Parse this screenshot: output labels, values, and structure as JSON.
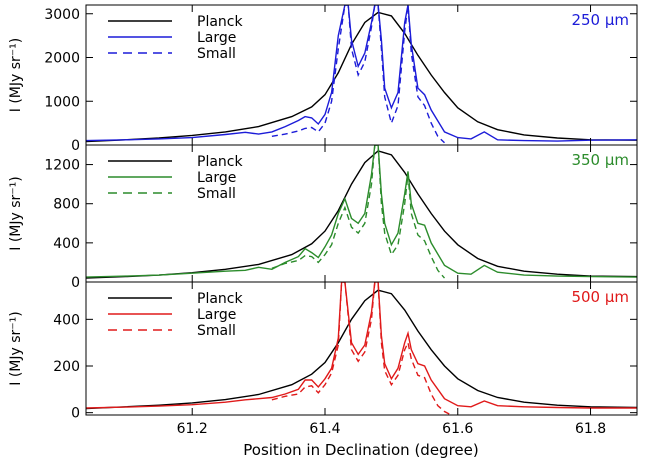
{
  "xlabel": "Position in Declination (degree)",
  "xlim": [
    61.04,
    61.87
  ],
  "x_ticks": [
    61.2,
    61.4,
    61.6,
    61.8
  ],
  "x_tick_labels": [
    "61.2",
    "61.4",
    "61.6",
    "61.8"
  ],
  "chart_data": [
    {
      "type": "line",
      "band_label": "250 μm",
      "band_color": "#1c1cd8",
      "ylabel": "I (MJy sr⁻¹)",
      "ylim": [
        0,
        3200
      ],
      "y_ticks": [
        0,
        1000,
        2000,
        3000
      ],
      "y_tick_labels": [
        "0",
        "1000",
        "2000",
        "3000"
      ],
      "legend": [
        "Planck",
        "Large",
        "Small"
      ],
      "series": [
        {
          "name": "Planck",
          "color": "#000000",
          "dash": "solid",
          "x": [
            61.04,
            61.1,
            61.15,
            61.2,
            61.25,
            61.3,
            61.35,
            61.38,
            61.4,
            61.42,
            61.44,
            61.46,
            61.48,
            61.5,
            61.52,
            61.54,
            61.56,
            61.58,
            61.6,
            61.63,
            61.66,
            61.7,
            61.75,
            61.8,
            61.87
          ],
          "y": [
            80,
            120,
            160,
            220,
            300,
            420,
            650,
            870,
            1150,
            1650,
            2300,
            2800,
            3030,
            2950,
            2550,
            2050,
            1600,
            1200,
            850,
            530,
            350,
            230,
            160,
            120,
            110
          ]
        },
        {
          "name": "Large",
          "color": "#1c1cd8",
          "dash": "solid",
          "x": [
            61.04,
            61.1,
            61.15,
            61.2,
            61.25,
            61.28,
            61.3,
            61.32,
            61.34,
            61.36,
            61.37,
            61.38,
            61.39,
            61.4,
            61.41,
            61.42,
            61.43,
            61.435,
            61.44,
            61.45,
            61.46,
            61.47,
            61.475,
            61.48,
            61.485,
            61.49,
            61.5,
            61.51,
            61.52,
            61.525,
            61.53,
            61.54,
            61.55,
            61.56,
            61.58,
            61.6,
            61.62,
            61.64,
            61.66,
            61.7,
            61.75,
            61.8,
            61.87
          ],
          "y": [
            100,
            120,
            140,
            170,
            240,
            290,
            250,
            300,
            420,
            560,
            650,
            620,
            480,
            700,
            1200,
            2500,
            3200,
            3200,
            2400,
            1800,
            2100,
            2800,
            3200,
            3200,
            2400,
            1300,
            850,
            1200,
            2800,
            3200,
            2300,
            1300,
            1150,
            800,
            300,
            170,
            140,
            300,
            120,
            100,
            90,
            110,
            120
          ]
        },
        {
          "name": "Small",
          "color": "#1c1cd8",
          "dash": "dashed",
          "x": [
            61.32,
            61.34,
            61.36,
            61.37,
            61.38,
            61.39,
            61.4,
            61.41,
            61.42,
            61.43,
            61.435,
            61.44,
            61.45,
            61.46,
            61.47,
            61.475,
            61.48,
            61.485,
            61.49,
            61.5,
            61.51,
            61.52,
            61.525,
            61.53,
            61.54,
            61.55,
            61.56,
            61.57,
            61.58
          ],
          "y": [
            200,
            250,
            320,
            380,
            400,
            300,
            500,
            1000,
            2200,
            3200,
            3200,
            2200,
            1600,
            1900,
            2700,
            3200,
            3200,
            2200,
            1100,
            500,
            900,
            2600,
            3200,
            2100,
            1100,
            900,
            500,
            200,
            50
          ]
        }
      ]
    },
    {
      "type": "line",
      "band_label": "350 μm",
      "band_color": "#2c8c2c",
      "ylabel": "I (MJy sr⁻¹)",
      "ylim": [
        0,
        1400
      ],
      "y_ticks": [
        0,
        400,
        800,
        1200
      ],
      "y_tick_labels": [
        "0",
        "400",
        "800",
        "1200"
      ],
      "legend": [
        "Planck",
        "Large",
        "Small"
      ],
      "series": [
        {
          "name": "Planck",
          "color": "#000000",
          "dash": "solid",
          "x": [
            61.04,
            61.1,
            61.15,
            61.2,
            61.25,
            61.3,
            61.35,
            61.38,
            61.4,
            61.42,
            61.44,
            61.46,
            61.48,
            61.5,
            61.52,
            61.54,
            61.56,
            61.58,
            61.6,
            61.63,
            61.66,
            61.7,
            61.75,
            61.8,
            61.87
          ],
          "y": [
            40,
            55,
            70,
            95,
            130,
            180,
            280,
            390,
            520,
            730,
            1000,
            1220,
            1340,
            1300,
            1120,
            900,
            700,
            520,
            380,
            240,
            160,
            110,
            80,
            60,
            55
          ]
        },
        {
          "name": "Large",
          "color": "#2c8c2c",
          "dash": "solid",
          "x": [
            61.04,
            61.1,
            61.15,
            61.2,
            61.25,
            61.28,
            61.3,
            61.32,
            61.34,
            61.36,
            61.37,
            61.38,
            61.39,
            61.4,
            61.41,
            61.42,
            61.43,
            61.44,
            61.45,
            61.46,
            61.47,
            61.475,
            61.48,
            61.485,
            61.49,
            61.5,
            61.51,
            61.52,
            61.525,
            61.53,
            61.54,
            61.55,
            61.56,
            61.58,
            61.6,
            61.62,
            61.64,
            61.66,
            61.7,
            61.75,
            61.8,
            61.87
          ],
          "y": [
            50,
            60,
            70,
            90,
            110,
            120,
            150,
            130,
            200,
            260,
            340,
            300,
            250,
            360,
            480,
            700,
            850,
            650,
            600,
            700,
            1100,
            1400,
            1400,
            900,
            600,
            380,
            500,
            900,
            1130,
            800,
            600,
            580,
            400,
            170,
            90,
            80,
            170,
            100,
            70,
            60,
            55,
            50
          ]
        },
        {
          "name": "Small",
          "color": "#2c8c2c",
          "dash": "dashed",
          "x": [
            61.32,
            61.34,
            61.36,
            61.37,
            61.38,
            61.39,
            61.4,
            61.41,
            61.42,
            61.43,
            61.44,
            61.45,
            61.46,
            61.47,
            61.475,
            61.48,
            61.485,
            61.49,
            61.5,
            61.51,
            61.52,
            61.525,
            61.53,
            61.54,
            61.55,
            61.56,
            61.57,
            61.58
          ],
          "y": [
            140,
            190,
            220,
            270,
            260,
            200,
            280,
            380,
            600,
            760,
            560,
            500,
            600,
            1000,
            1400,
            1400,
            800,
            500,
            280,
            380,
            800,
            1100,
            700,
            480,
            420,
            260,
            120,
            40
          ]
        }
      ]
    },
    {
      "type": "line",
      "band_label": "500 μm",
      "band_color": "#e01a1a",
      "ylabel": "I (MJy sr⁻¹)",
      "ylim": [
        -10,
        560
      ],
      "y_ticks": [
        0,
        200,
        400
      ],
      "y_tick_labels": [
        "0",
        "200",
        "400"
      ],
      "legend": [
        "Planck",
        "Large",
        "Small"
      ],
      "series": [
        {
          "name": "Planck",
          "color": "#000000",
          "dash": "solid",
          "x": [
            61.04,
            61.1,
            61.15,
            61.2,
            61.25,
            61.3,
            61.35,
            61.38,
            61.4,
            61.42,
            61.44,
            61.46,
            61.48,
            61.5,
            61.52,
            61.54,
            61.56,
            61.58,
            61.6,
            61.63,
            61.66,
            61.7,
            61.75,
            61.8,
            61.87
          ],
          "y": [
            18,
            25,
            32,
            42,
            56,
            78,
            120,
            165,
            215,
            300,
            400,
            480,
            525,
            510,
            440,
            350,
            270,
            200,
            145,
            95,
            65,
            45,
            32,
            25,
            22
          ]
        },
        {
          "name": "Large",
          "color": "#e01a1a",
          "dash": "solid",
          "x": [
            61.04,
            61.1,
            61.15,
            61.2,
            61.25,
            61.28,
            61.3,
            61.32,
            61.34,
            61.36,
            61.37,
            61.38,
            61.39,
            61.4,
            61.41,
            61.42,
            61.425,
            61.43,
            61.44,
            61.45,
            61.46,
            61.47,
            61.475,
            61.48,
            61.485,
            61.49,
            61.5,
            61.51,
            61.52,
            61.525,
            61.53,
            61.54,
            61.55,
            61.56,
            61.58,
            61.6,
            61.62,
            61.64,
            61.66,
            61.7,
            61.75,
            61.8,
            61.87
          ],
          "y": [
            20,
            24,
            28,
            34,
            45,
            55,
            60,
            65,
            80,
            100,
            140,
            140,
            110,
            145,
            190,
            320,
            560,
            560,
            300,
            250,
            290,
            430,
            560,
            560,
            330,
            210,
            145,
            190,
            300,
            340,
            270,
            210,
            200,
            140,
            60,
            30,
            25,
            50,
            30,
            25,
            22,
            20,
            20
          ]
        },
        {
          "name": "Small",
          "color": "#e01a1a",
          "dash": "dashed",
          "x": [
            61.32,
            61.34,
            61.36,
            61.37,
            61.38,
            61.39,
            61.4,
            61.41,
            61.42,
            61.425,
            61.43,
            61.44,
            61.45,
            61.46,
            61.47,
            61.475,
            61.48,
            61.485,
            61.49,
            61.5,
            61.51,
            61.52,
            61.525,
            61.53,
            61.54,
            61.55,
            61.56,
            61.57,
            61.58,
            61.59
          ],
          "y": [
            55,
            70,
            80,
            110,
            115,
            85,
            120,
            170,
            290,
            560,
            560,
            270,
            220,
            260,
            400,
            560,
            560,
            300,
            180,
            120,
            160,
            270,
            300,
            230,
            160,
            150,
            80,
            30,
            5,
            -10
          ]
        }
      ]
    }
  ]
}
